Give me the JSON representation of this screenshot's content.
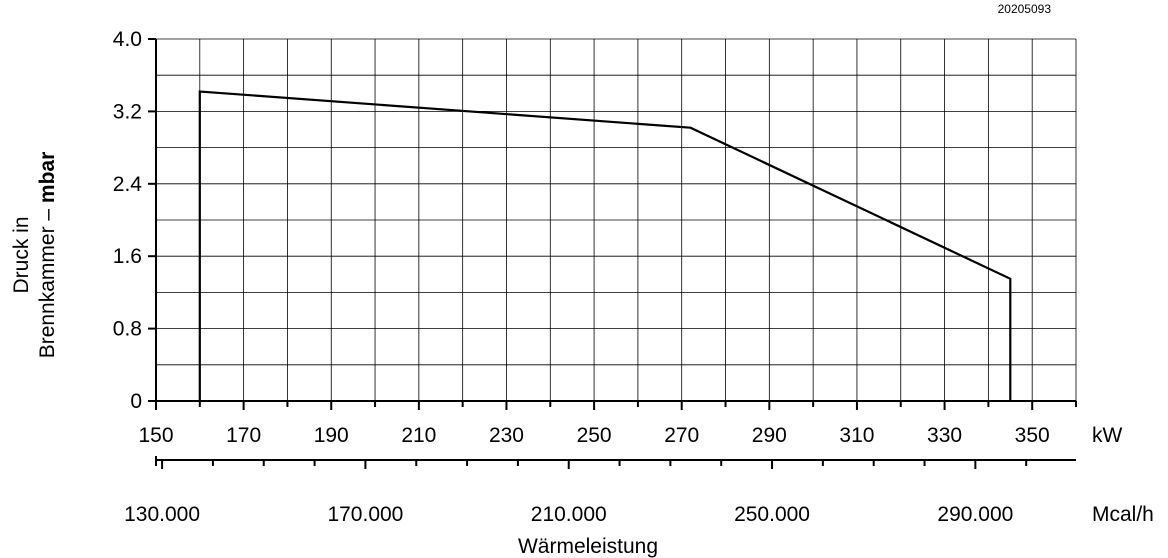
{
  "doc_id": "20205093",
  "chart_data": {
    "type": "line",
    "title": "",
    "xlabel": "Wärmeleistung",
    "ylabel_line1": "Druck in",
    "ylabel_line2_regular": "Brennkammer – ",
    "ylabel_line2_bold": "mbar",
    "primary_x_unit": "kW",
    "secondary_x_unit": "Mcal/h",
    "xlim": [
      150,
      360
    ],
    "ylim": [
      0,
      4.0
    ],
    "x_ticks": [
      150,
      170,
      190,
      210,
      230,
      250,
      270,
      290,
      310,
      330,
      350
    ],
    "x_tick_labels": [
      "150",
      "170",
      "190",
      "210",
      "230",
      "250",
      "270",
      "290",
      "310",
      "330",
      "350"
    ],
    "y_ticks": [
      0,
      0.8,
      1.6,
      2.4,
      3.2,
      4.0
    ],
    "y_tick_labels": [
      "0",
      "0.8",
      "1.6",
      "2.4",
      "3.2",
      "4.0"
    ],
    "secondary_ticks": [
      130000,
      170000,
      210000,
      250000,
      290000
    ],
    "secondary_tick_labels": [
      "130.000",
      "170.000",
      "210.000",
      "250.000",
      "290.000"
    ],
    "secondary_xlim": [
      128800,
      309800
    ],
    "grid": true,
    "series": [
      {
        "x": [
          160,
          160,
          272,
          345,
          345
        ],
        "y": [
          0,
          3.42,
          3.02,
          1.35,
          0
        ]
      }
    ]
  }
}
